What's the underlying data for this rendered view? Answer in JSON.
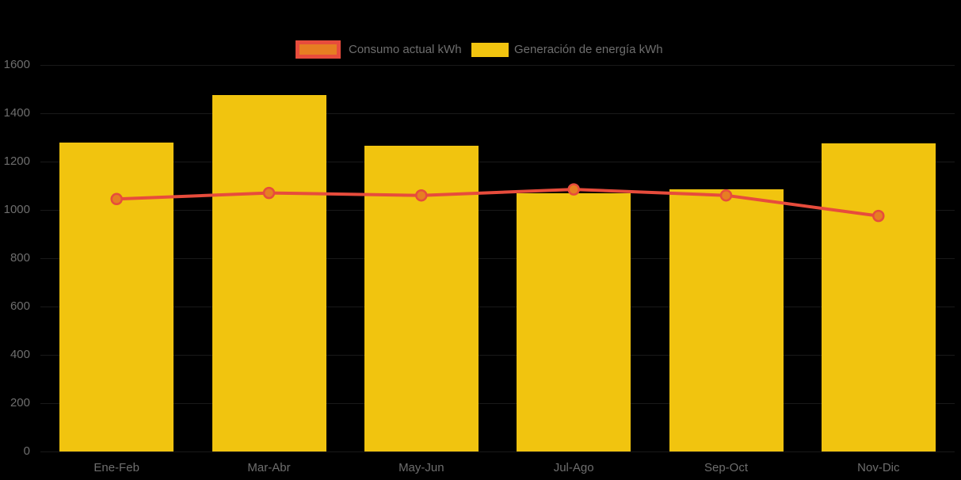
{
  "page": {
    "background": "#000000"
  },
  "legend": {
    "text_color": "#6E6E6E",
    "items": [
      {
        "label": "Consumo actual kWh",
        "series_type": "line",
        "fill": "#E67E22",
        "border": "#E74C3C"
      },
      {
        "label": "Generación de energía kWh",
        "series_type": "bar",
        "fill": "#F1C40F",
        "border": "#F1C40F"
      }
    ]
  },
  "axes": {
    "label_color": "#6E6E6E",
    "grid_color": "#191919"
  },
  "chart_data": {
    "type": "bar",
    "title": "",
    "xlabel": "",
    "ylabel": "",
    "categories": [
      "Ene-Feb",
      "Mar-Abr",
      "May-Jun",
      "Jul-Ago",
      "Sep-Oct",
      "Nov-Dic"
    ],
    "series": [
      {
        "name": "Consumo actual kWh",
        "type": "line",
        "color": "#E74C3C",
        "point_fill": "#E67E22",
        "values": [
          1045,
          1070,
          1060,
          1085,
          1060,
          975
        ]
      },
      {
        "name": "Generación de energía kWh",
        "type": "bar",
        "color": "#F1C40F",
        "values": [
          1280,
          1475,
          1265,
          1070,
          1085,
          1275
        ]
      }
    ],
    "ylim": [
      0,
      1600
    ],
    "yticks": [
      0,
      200,
      400,
      600,
      800,
      1000,
      1200,
      1400,
      1600
    ],
    "grid": "faint-horizontal",
    "legend_position": "top-center"
  }
}
